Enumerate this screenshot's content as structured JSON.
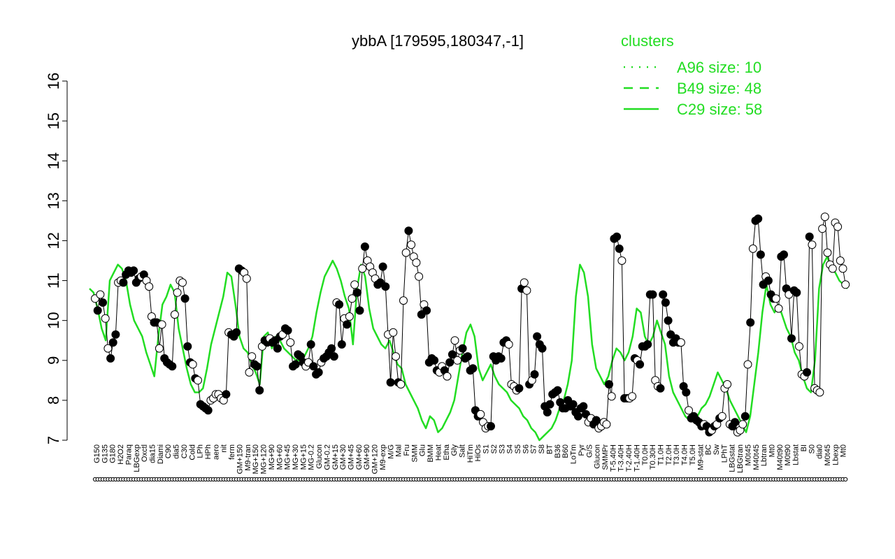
{
  "chart_data": {
    "type": "line",
    "title": "ybbA [179595,180347,-1]",
    "xlabel": "",
    "ylabel": "",
    "ylim": [
      7,
      16
    ],
    "yticks": [
      7,
      8,
      9,
      10,
      11,
      12,
      13,
      14,
      15,
      16
    ],
    "grid": false,
    "legend_title": "clusters",
    "legend_position": "top-right",
    "legend": [
      {
        "label": "A96 size: 10",
        "style": "dotted"
      },
      {
        "label": "B49 size: 48",
        "style": "dashed"
      },
      {
        "label": "C29 size: 58",
        "style": "solid"
      }
    ],
    "colors": {
      "cluster": "#22dd22",
      "profile": "#000000",
      "point_open": "#ffffff",
      "point_filled": "#000000"
    },
    "xtick_labels": [
      "G150",
      "G135",
      "G180",
      "H2O2",
      "Paraq",
      "LBGexp",
      "Oxctl",
      "dia15",
      "Diami",
      "C90",
      "dia5",
      "C30",
      "Cold",
      "LPh",
      "HPh",
      "aero",
      "nit",
      "ferm",
      "GM+150",
      "M9-tran",
      "MG+150",
      "MG+120",
      "MG+90",
      "MG+60",
      "MG+45",
      "MG+30",
      "MG+15",
      "MG-0.2",
      "Glucon",
      "GM-0.2",
      "GM+15",
      "GM+30",
      "GM+45",
      "GM+60",
      "GM+90",
      "GM+120",
      "M9-exp",
      "M/G",
      "Mal",
      "Fru",
      "SMM",
      "Glu",
      "BMM",
      "Heat",
      "Etha",
      "Gly",
      "Salt",
      "HiTm",
      "HiOs",
      "S1",
      "S2",
      "S3",
      "S4",
      "S5",
      "S6",
      "S7",
      "S8",
      "BT",
      "B36",
      "B60",
      "LoTm",
      "Pyr",
      "G/S",
      "Glucon",
      "SMMPr",
      "T-5.40H",
      "T-3.40H",
      "T-2.40H",
      "T-1.40H",
      "T0.0H",
      "T0.30H",
      "T1.0H",
      "T2.0H",
      "T3.0H",
      "T4.0H",
      "T5.0H",
      "M9-stat",
      "BC",
      "Sw",
      "LPhT",
      "LBGstat",
      "LBGtran",
      "M0t45",
      "M40t45",
      "Lbtran",
      "Mt0",
      "M40t90",
      "M0t90",
      "Lbstat",
      "BI",
      "S0",
      "dia0",
      "M0t45",
      "Lbexp",
      "Mt0"
    ],
    "series": [
      {
        "kind": "cluster_band",
        "values": [
          10.8,
          10.7,
          10.3,
          9.8,
          9.5,
          11.0,
          11.2,
          11.4,
          11.3,
          11.0,
          10.4,
          10.0,
          9.8,
          9.6,
          9.2,
          8.9,
          8.6,
          9.6,
          10.4,
          10.6,
          10.9,
          10.7,
          9.8,
          9.3,
          8.8,
          8.4,
          8.2,
          8.2,
          8.3,
          8.8,
          9.4,
          9.8,
          10.2,
          10.6,
          11.2,
          11.1,
          10.4,
          9.6,
          9.3,
          9.2,
          8.9,
          8.7,
          8.4,
          9.6,
          9.7,
          9.3,
          9.6,
          9.5,
          9.3,
          9.2,
          9.1,
          9.0,
          9.0,
          9.1,
          9.3,
          9.6,
          10.2,
          10.7,
          11.1,
          11.3,
          11.5,
          11.3,
          11.0,
          10.6,
          10.3,
          9.4,
          10.8,
          11.4,
          11.1,
          10.3,
          9.8,
          9.6,
          9.4,
          9.3,
          9.5,
          9.2,
          8.9,
          8.8,
          8.4,
          8.2,
          8.0,
          7.8,
          7.5,
          7.3,
          7.6,
          7.5,
          7.2,
          7.3,
          7.5,
          7.7,
          8.0,
          8.6,
          9.2,
          9.7,
          9.9,
          9.6,
          8.8,
          8.5,
          8.7,
          8.9,
          8.6,
          8.4,
          8.3,
          8.2,
          8.0,
          7.9,
          7.8,
          7.6,
          7.5,
          7.3,
          7.2,
          7.0,
          7.1,
          7.2,
          7.3,
          7.5,
          7.8,
          8.0,
          8.4,
          9.0,
          10.6,
          11.4,
          11.2,
          10.6,
          9.4,
          8.8,
          8.6,
          8.4,
          8.6,
          9.0,
          9.3,
          9.2,
          9.0,
          9.2,
          9.6,
          10.3,
          10.2,
          9.6,
          9.4,
          9.6,
          10.0,
          9.7,
          9.4,
          8.6,
          8.2,
          8.0,
          7.8,
          7.6,
          7.5,
          7.5,
          7.6,
          7.8,
          7.9,
          8.1,
          8.4,
          8.7,
          8.5,
          8.3,
          8.0,
          7.8,
          7.6,
          7.4,
          7.2,
          7.6,
          8.4,
          9.2,
          10.2,
          10.9,
          10.4,
          10.2,
          10.4,
          10.1,
          9.8,
          9.6,
          9.2,
          9.0,
          8.6,
          8.3,
          8.2,
          9.0,
          10.8,
          11.4,
          11.6,
          11.3,
          11.2,
          11.0,
          10.9,
          10.8
        ]
      },
      {
        "kind": "profile",
        "values": [
          10.55,
          10.25,
          10.65,
          10.45,
          10.05,
          9.3,
          9.05,
          9.45,
          9.65,
          10.95,
          11.0,
          10.95,
          11.15,
          11.25,
          11.2,
          11.25,
          10.95,
          11.05,
          11.1,
          11.15,
          11.0,
          10.85,
          10.1,
          9.95,
          9.95,
          9.3,
          9.9,
          9.05,
          8.95,
          8.9,
          8.85,
          10.15,
          10.7,
          11.0,
          10.95,
          10.55,
          9.35,
          8.95,
          8.9,
          8.55,
          8.5,
          7.9,
          7.85,
          7.8,
          7.75,
          8.0,
          8.05,
          8.15,
          8.15,
          8.05,
          8.0,
          8.15,
          9.7,
          9.65,
          9.6,
          9.7,
          11.3,
          11.25,
          11.2,
          11.05,
          8.7,
          9.1,
          8.9,
          8.85,
          8.25,
          9.35,
          9.5,
          9.45,
          9.55,
          9.45,
          9.5,
          9.3,
          9.6,
          9.65,
          9.8,
          9.75,
          9.45,
          8.85,
          8.9,
          9.15,
          9.1,
          8.95,
          8.85,
          8.95,
          9.4,
          8.85,
          8.65,
          8.7,
          8.95,
          9.05,
          9.1,
          9.2,
          9.3,
          9.1,
          10.45,
          10.4,
          9.4,
          10.05,
          9.9,
          10.1,
          10.55,
          10.9,
          10.7,
          10.25,
          11.3,
          11.85,
          11.5,
          11.35,
          11.2,
          11.05,
          10.9,
          10.95,
          11.35,
          10.85,
          9.65,
          8.45,
          9.7,
          9.1,
          8.45,
          8.4,
          10.5,
          11.7,
          12.25,
          11.9,
          11.6,
          11.45,
          11.1,
          10.15,
          10.4,
          10.25,
          8.95,
          9.05,
          9.0,
          8.75,
          8.7,
          8.85,
          8.75,
          8.6,
          8.95,
          9.15,
          9.5,
          9.0,
          9.25,
          9.3,
          9.05,
          9.1,
          8.75,
          8.8,
          7.75,
          7.6,
          7.65,
          7.45,
          7.3,
          7.35,
          7.35,
          9.1,
          9.0,
          9.1,
          9.05,
          9.45,
          9.5,
          9.4,
          8.4,
          8.35,
          8.25,
          8.3,
          10.8,
          10.95,
          10.75,
          8.4,
          8.5,
          8.65,
          9.6,
          9.4,
          9.3,
          7.85,
          7.7,
          7.9,
          8.15,
          8.2,
          8.25,
          7.95,
          7.8,
          7.8,
          8.0,
          7.85,
          7.9,
          7.7,
          7.6,
          7.8,
          7.85,
          7.65,
          7.45,
          7.55,
          7.4,
          7.5,
          7.3,
          7.35,
          7.45,
          7.4,
          8.4,
          8.1,
          12.05,
          12.1,
          11.8,
          11.5,
          8.05,
          8.05,
          8.05,
          8.1,
          9.05,
          9.0,
          8.9,
          9.35,
          9.35,
          9.4,
          10.65,
          10.65,
          8.5,
          8.35,
          8.3,
          10.65,
          10.45,
          10.0,
          9.65,
          9.45,
          9.55,
          9.45,
          9.45,
          8.35,
          8.2,
          7.75,
          7.55,
          7.6,
          7.5,
          7.45,
          7.35,
          7.4,
          7.35,
          7.2,
          7.25,
          7.35,
          7.4,
          7.55,
          7.6,
          8.3,
          8.4,
          7.4,
          7.35,
          7.45,
          7.2,
          7.25,
          7.4,
          7.6,
          8.9,
          9.95,
          11.8,
          12.5,
          12.55,
          11.65,
          10.9,
          11.1,
          11.0,
          10.65,
          10.55,
          10.55,
          10.3,
          11.6,
          11.65,
          10.8,
          10.65,
          9.55,
          10.75,
          10.7,
          9.35,
          8.65,
          8.6,
          8.7,
          12.1,
          11.9,
          8.3,
          8.25,
          8.2,
          12.3,
          12.6,
          11.7,
          11.4,
          11.3,
          12.45,
          12.35,
          11.5,
          11.3,
          10.9
        ],
        "marker": [
          "o",
          "f",
          "o",
          "f",
          "o",
          "o",
          "f",
          "f",
          "f",
          "o",
          "o",
          "f",
          "f",
          "f",
          "f",
          "f",
          "f",
          "f",
          "o",
          "f",
          "o",
          "o",
          "o",
          "f",
          "f",
          "o",
          "o",
          "f",
          "f",
          "f",
          "f",
          "o",
          "o",
          "o",
          "o",
          "f",
          "f",
          "f",
          "o",
          "f",
          "o",
          "f",
          "f",
          "f",
          "f",
          "o",
          "o",
          "o",
          "o",
          "o",
          "o",
          "f",
          "o",
          "f",
          "f",
          "f",
          "f",
          "f",
          "o",
          "o",
          "o",
          "o",
          "f",
          "f",
          "f",
          "o",
          "f",
          "f",
          "o",
          "f",
          "f",
          "f",
          "f",
          "o",
          "f",
          "f",
          "o",
          "f",
          "f",
          "f",
          "f",
          "f",
          "o",
          "o",
          "f",
          "f",
          "f",
          "f",
          "o",
          "f",
          "f",
          "f",
          "f",
          "f",
          "o",
          "f",
          "f",
          "o",
          "f",
          "o",
          "o",
          "o",
          "f",
          "f",
          "o",
          "f",
          "o",
          "o",
          "o",
          "o",
          "f",
          "f",
          "f",
          "f",
          "o",
          "f",
          "o",
          "o",
          "f",
          "o",
          "o",
          "o",
          "f",
          "o",
          "o",
          "o",
          "o",
          "f",
          "o",
          "f",
          "f",
          "f",
          "f",
          "f",
          "o",
          "o",
          "f",
          "o",
          "f",
          "f",
          "o",
          "o",
          "o",
          "f",
          "f",
          "f",
          "f",
          "f",
          "f",
          "f",
          "o",
          "o",
          "o",
          "o",
          "f",
          "f",
          "f",
          "f",
          "f",
          "f",
          "f",
          "o",
          "o",
          "o",
          "o",
          "f",
          "f",
          "o",
          "o",
          "f",
          "o",
          "f",
          "f",
          "f",
          "f",
          "f",
          "f",
          "f",
          "f",
          "f",
          "f",
          "f",
          "f",
          "f",
          "f",
          "f",
          "f",
          "f",
          "f",
          "f",
          "f",
          "f",
          "o",
          "o",
          "f",
          "f",
          "o",
          "o",
          "o",
          "o",
          "f",
          "o",
          "f",
          "f",
          "f",
          "o",
          "f",
          "f",
          "o",
          "o",
          "f",
          "o",
          "f",
          "f",
          "f",
          "f",
          "f",
          "f",
          "o",
          "o",
          "f",
          "f",
          "f",
          "f",
          "f",
          "f",
          "f",
          "f",
          "o",
          "f",
          "f",
          "o",
          "f",
          "f",
          "f",
          "f",
          "f",
          "o",
          "f",
          "f",
          "o",
          "f",
          "o",
          "f",
          "o",
          "o",
          "o",
          "o",
          "f",
          "f",
          "o",
          "o",
          "o",
          "f",
          "o",
          "f",
          "o",
          "f",
          "f",
          "f",
          "f",
          "o",
          "f",
          "f",
          "f",
          "o",
          "o",
          "f",
          "f",
          "f",
          "o",
          "f",
          "f",
          "f",
          "o",
          "o",
          "o",
          "f",
          "f"
        ]
      }
    ]
  }
}
